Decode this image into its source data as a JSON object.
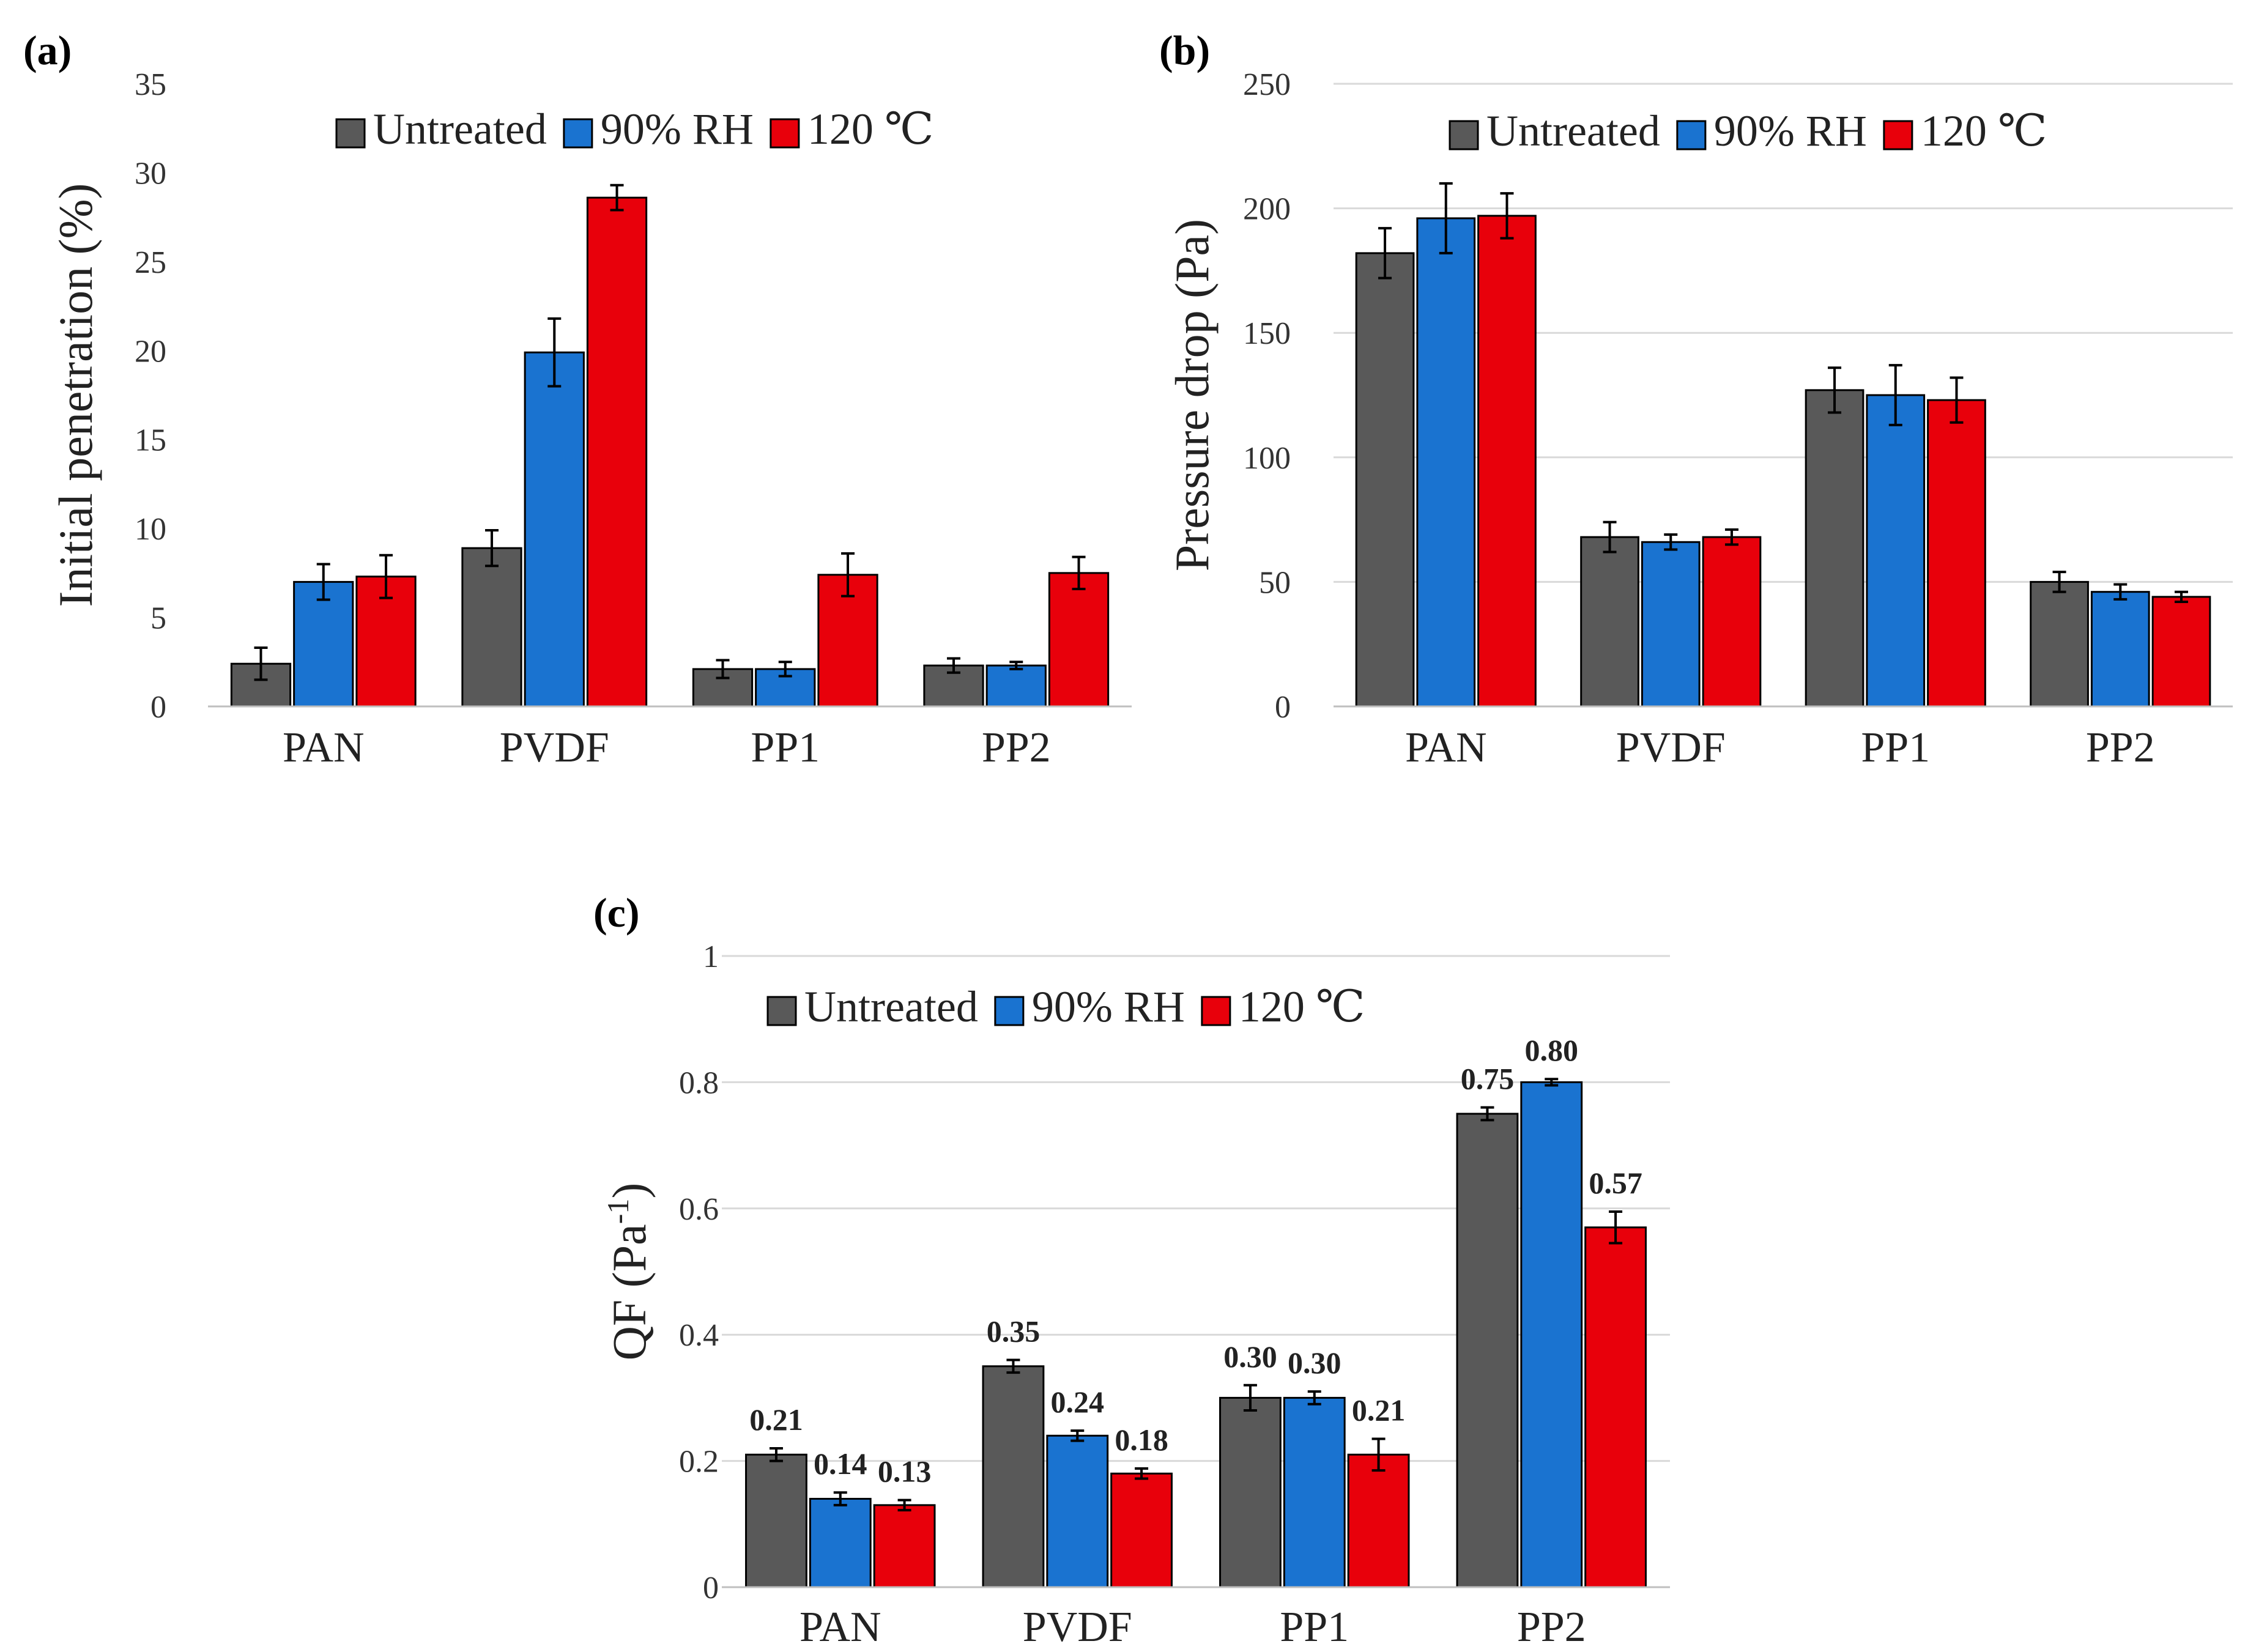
{
  "series_colors": [
    "#595959",
    "#1a73d0",
    "#e8000b"
  ],
  "chart_data": [
    {
      "panel": "(a)",
      "type": "bar",
      "categories": [
        "PAN",
        "PVDF",
        "PP1",
        "PP2"
      ],
      "series": [
        {
          "name": "Untreated",
          "values": [
            2.4,
            8.9,
            2.1,
            2.3
          ],
          "errors": [
            0.9,
            1.0,
            0.5,
            0.4
          ]
        },
        {
          "name": "90% RH",
          "values": [
            7.0,
            19.9,
            2.1,
            2.3
          ],
          "errors": [
            1.0,
            1.9,
            0.4,
            0.2
          ]
        },
        {
          "name": "120 ℃",
          "values": [
            7.3,
            28.6,
            7.4,
            7.5
          ],
          "errors": [
            1.2,
            0.7,
            1.2,
            0.9
          ]
        }
      ],
      "ylabel": "Initial penetration (%)",
      "xlabel": "",
      "ylim": [
        0,
        35
      ],
      "yticks": [
        0,
        5,
        10,
        15,
        20,
        25,
        30,
        35
      ],
      "ytick_labels": [
        "0",
        "5",
        "10",
        "15",
        "20",
        "25",
        "30",
        "35"
      ],
      "grid": false,
      "legend": "top"
    },
    {
      "panel": "(b)",
      "type": "bar",
      "categories": [
        "PAN",
        "PVDF",
        "PP1",
        "PP2"
      ],
      "series": [
        {
          "name": "Untreated",
          "values": [
            182,
            68,
            127,
            50
          ],
          "errors": [
            10,
            6,
            9,
            4
          ]
        },
        {
          "name": "90% RH",
          "values": [
            196,
            66,
            125,
            46
          ],
          "errors": [
            14,
            3,
            12,
            3
          ]
        },
        {
          "name": "120 ℃",
          "values": [
            197,
            68,
            123,
            44
          ],
          "errors": [
            9,
            3,
            9,
            2
          ]
        }
      ],
      "ylabel": "Pressure drop (Pa)",
      "xlabel": "",
      "ylim": [
        0,
        250
      ],
      "yticks": [
        0,
        50,
        100,
        150,
        200,
        250
      ],
      "ytick_labels": [
        "0",
        "50",
        "100",
        "150",
        "200",
        "250"
      ],
      "grid": true,
      "legend": "top"
    },
    {
      "panel": "(c)",
      "type": "bar",
      "categories": [
        "PAN",
        "PVDF",
        "PP1",
        "PP2"
      ],
      "series": [
        {
          "name": "Untreated",
          "values": [
            0.21,
            0.35,
            0.3,
            0.75
          ],
          "labels": [
            "0.21",
            "0.35",
            "0.30",
            "0.75"
          ],
          "errors": [
            0.01,
            0.01,
            0.02,
            0.01
          ]
        },
        {
          "name": "90% RH",
          "values": [
            0.14,
            0.24,
            0.3,
            0.8
          ],
          "labels": [
            "0.14",
            "0.24",
            "0.30",
            "0.80"
          ],
          "errors": [
            0.01,
            0.008,
            0.01,
            0.005
          ]
        },
        {
          "name": "120 ℃",
          "values": [
            0.13,
            0.18,
            0.21,
            0.57
          ],
          "labels": [
            "0.13",
            "0.18",
            "0.21",
            "0.57"
          ],
          "errors": [
            0.008,
            0.008,
            0.025,
            0.025
          ]
        }
      ],
      "ylabel_main": "QF (Pa",
      "ylabel_sup": "-1",
      "ylabel_end": ")",
      "xlabel": "",
      "ylim": [
        0,
        1
      ],
      "yticks": [
        0,
        0.2,
        0.4,
        0.6,
        0.8,
        1
      ],
      "ytick_labels": [
        "0",
        "0.2",
        "0.4",
        "0.6",
        "0.8",
        "1"
      ],
      "grid": true,
      "legend": "top"
    }
  ]
}
